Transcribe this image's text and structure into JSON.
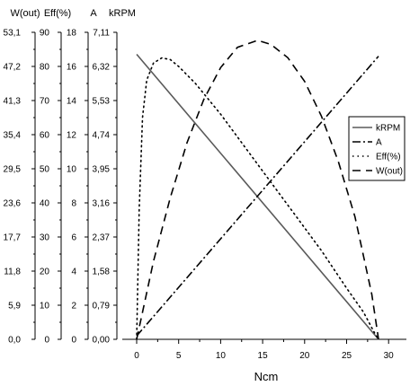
{
  "chart_data": {
    "type": "line",
    "xlabel": "Ncm",
    "x_ticks": [
      "0",
      "5",
      "10",
      "15",
      "20",
      "25",
      "30"
    ],
    "xlim": [
      0,
      30
    ],
    "y_axes": [
      {
        "label": "W(out)",
        "unit_label": "",
        "ticks": [
          "0,0",
          "5,9",
          "11,8",
          "17,7",
          "23,6",
          "29,5",
          "35,4",
          "41,3",
          "47,2",
          "53,1"
        ],
        "range": [
          0,
          53.1
        ]
      },
      {
        "label": "Eff(%)",
        "unit_label": "",
        "ticks": [
          "0",
          "10",
          "20",
          "30",
          "40",
          "50",
          "60",
          "70",
          "80",
          "90"
        ],
        "range": [
          0,
          90
        ]
      },
      {
        "label": "A",
        "unit_label": "",
        "ticks": [
          "0",
          "2",
          "4",
          "6",
          "8",
          "10",
          "12",
          "14",
          "16",
          "18"
        ],
        "range": [
          0,
          18
        ]
      },
      {
        "label": "kRPM",
        "unit_label": "",
        "ticks": [
          "0,00",
          "0,79",
          "1,58",
          "2,37",
          "3,16",
          "3,95",
          "4,74",
          "5,53",
          "6,32",
          "7,11"
        ],
        "range": [
          0,
          7.11
        ]
      }
    ],
    "legend_position": "right",
    "series": [
      {
        "name": "kRPM",
        "style": "solid",
        "axis": 3,
        "x": [
          0,
          28.8
        ],
        "y": [
          6.6,
          0.0
        ]
      },
      {
        "name": "A",
        "style": "dashdot",
        "axis": 2,
        "x": [
          0,
          28.8
        ],
        "y": [
          0.2,
          16.6
        ]
      },
      {
        "name": "Eff(%)",
        "style": "dotted",
        "axis": 1,
        "x": [
          0,
          0.3,
          0.7,
          1.2,
          2,
          3,
          4,
          5,
          7,
          10,
          13,
          16,
          19,
          22,
          25,
          27,
          28.3,
          28.8
        ],
        "y": [
          0,
          38,
          65,
          76,
          81,
          82.5,
          82,
          80,
          75,
          66,
          56,
          46,
          36,
          26,
          15,
          8,
          2,
          0
        ]
      },
      {
        "name": "W(out)",
        "style": "dashed",
        "axis": 0,
        "x": [
          0,
          2,
          4,
          6,
          8,
          10,
          12,
          14.4,
          16,
          18,
          20,
          22,
          24,
          26,
          28,
          28.8
        ],
        "y": [
          0,
          13.5,
          24.5,
          34.0,
          41.5,
          47.0,
          50.5,
          51.7,
          51.0,
          48.7,
          44.6,
          38.6,
          30.8,
          21.2,
          7.8,
          0
        ]
      }
    ]
  },
  "legend": {
    "items": [
      {
        "label": "kRPM",
        "style": "solid"
      },
      {
        "label": "A",
        "style": "dashdot"
      },
      {
        "label": "Eff(%)",
        "style": "dotted"
      },
      {
        "label": "W(out)",
        "style": "dashed"
      }
    ]
  },
  "colors": {
    "line": "#000000",
    "krpm": "#5a5a5a",
    "background": "#ffffff"
  }
}
